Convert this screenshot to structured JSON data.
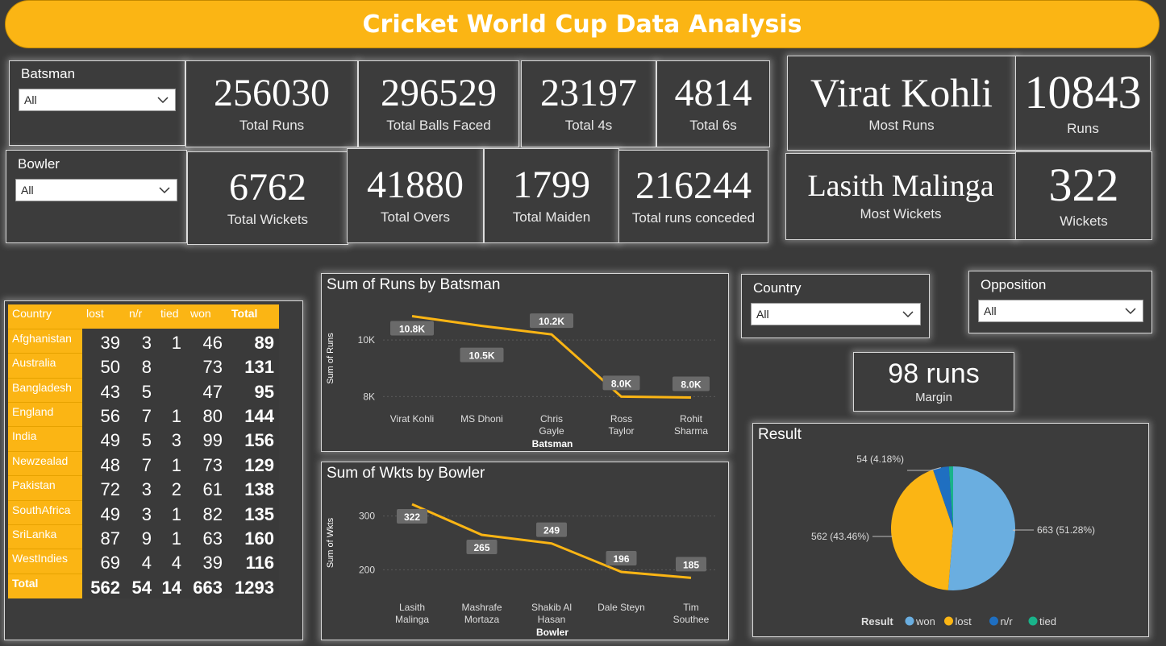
{
  "header": {
    "title": "Cricket World Cup Data Analysis"
  },
  "slicers": {
    "batsman": {
      "label": "Batsman",
      "value": "All"
    },
    "bowler": {
      "label": "Bowler",
      "value": "All"
    },
    "country": {
      "label": "Country",
      "value": "All"
    },
    "opposition": {
      "label": "Opposition",
      "value": "All"
    }
  },
  "kpis": {
    "total_runs": {
      "value": "256030",
      "label": "Total Runs"
    },
    "total_balls": {
      "value": "296529",
      "label": "Total Balls Faced"
    },
    "total_4s": {
      "value": "23197",
      "label": "Total 4s"
    },
    "total_6s": {
      "value": "4814",
      "label": "Total 6s"
    },
    "most_runs_name": {
      "value": "Virat Kohli",
      "label": "Most Runs"
    },
    "most_runs_val": {
      "value": "10843",
      "label": "Runs"
    },
    "total_wickets": {
      "value": "6762",
      "label": "Total Wickets"
    },
    "total_overs": {
      "value": "41880",
      "label": "Total Overs"
    },
    "total_maiden": {
      "value": "1799",
      "label": "Total Maiden"
    },
    "runs_conceded": {
      "value": "216244",
      "label": "Total runs conceded"
    },
    "most_wkts_name": {
      "value": "Lasith Malinga",
      "label": "Most Wickets"
    },
    "most_wkts_val": {
      "value": "322",
      "label": "Wickets"
    },
    "margin": {
      "value": "98 runs",
      "label": "Margin"
    }
  },
  "matrix": {
    "headers": [
      "Country",
      "lost",
      "n/r",
      "tied",
      "won",
      "Total"
    ],
    "rows": [
      {
        "country": "Afghanistan",
        "lost": "39",
        "nr": "3",
        "tied": "1",
        "won": "46",
        "total": "89"
      },
      {
        "country": "Australia",
        "lost": "50",
        "nr": "8",
        "tied": "",
        "won": "73",
        "total": "131"
      },
      {
        "country": "Bangladesh",
        "lost": "43",
        "nr": "5",
        "tied": "",
        "won": "47",
        "total": "95"
      },
      {
        "country": "England",
        "lost": "56",
        "nr": "7",
        "tied": "1",
        "won": "80",
        "total": "144"
      },
      {
        "country": "India",
        "lost": "49",
        "nr": "5",
        "tied": "3",
        "won": "99",
        "total": "156"
      },
      {
        "country": "Newzealad",
        "lost": "48",
        "nr": "7",
        "tied": "1",
        "won": "73",
        "total": "129"
      },
      {
        "country": "Pakistan",
        "lost": "72",
        "nr": "3",
        "tied": "2",
        "won": "61",
        "total": "138"
      },
      {
        "country": "SouthAfrica",
        "lost": "49",
        "nr": "3",
        "tied": "1",
        "won": "82",
        "total": "135"
      },
      {
        "country": "SriLanka",
        "lost": "87",
        "nr": "9",
        "tied": "1",
        "won": "63",
        "total": "160"
      },
      {
        "country": "WestIndies",
        "lost": "69",
        "nr": "4",
        "tied": "4",
        "won": "39",
        "total": "116"
      }
    ],
    "total": {
      "country": "Total",
      "lost": "562",
      "nr": "54",
      "tied": "14",
      "won": "663",
      "total": "1293"
    }
  },
  "chart_data": [
    {
      "type": "line",
      "title": "Sum of Runs by Batsman",
      "xlabel": "Batsman",
      "ylabel": "Sum of Runs",
      "categories": [
        "Virat Kohli",
        "MS Dhoni",
        "Chris Gayle",
        "Ross Taylor",
        "Rohit Sharma"
      ],
      "values": [
        10843,
        10500,
        10200,
        8000,
        7970
      ],
      "data_labels": [
        "10.8K",
        "10.5K",
        "10.2K",
        "8.0K",
        "8.0K"
      ],
      "yticks": [
        "8K",
        "10K"
      ],
      "ylim": [
        7500,
        11200
      ],
      "color": "#fbb514"
    },
    {
      "type": "line",
      "title": "Sum of Wkts by Bowler",
      "xlabel": "Bowler",
      "ylabel": "Sum of Wkts",
      "categories": [
        "Lasith Malinga",
        "Mashrafe Mortaza",
        "Shakib Al Hasan",
        "Dale Steyn",
        "Tim Southee"
      ],
      "values": [
        322,
        265,
        249,
        196,
        185
      ],
      "data_labels": [
        "322",
        "265",
        "249",
        "196",
        "185"
      ],
      "yticks": [
        "200",
        "300"
      ],
      "ylim": [
        160,
        340
      ],
      "color": "#fbb514"
    },
    {
      "type": "pie",
      "title": "Result",
      "legend_title": "Result",
      "legend_position": "bottom",
      "slices": [
        {
          "name": "won",
          "value": 663,
          "label": "663 (51.28%)",
          "color": "#6aaee0"
        },
        {
          "name": "lost",
          "value": 562,
          "label": "562 (43.46%)",
          "color": "#fbb514"
        },
        {
          "name": "n/r",
          "value": 54,
          "label": "54 (4.18%)",
          "color": "#1f6fc1"
        },
        {
          "name": "tied",
          "value": 14,
          "label": "",
          "color": "#19b38a"
        }
      ]
    }
  ]
}
